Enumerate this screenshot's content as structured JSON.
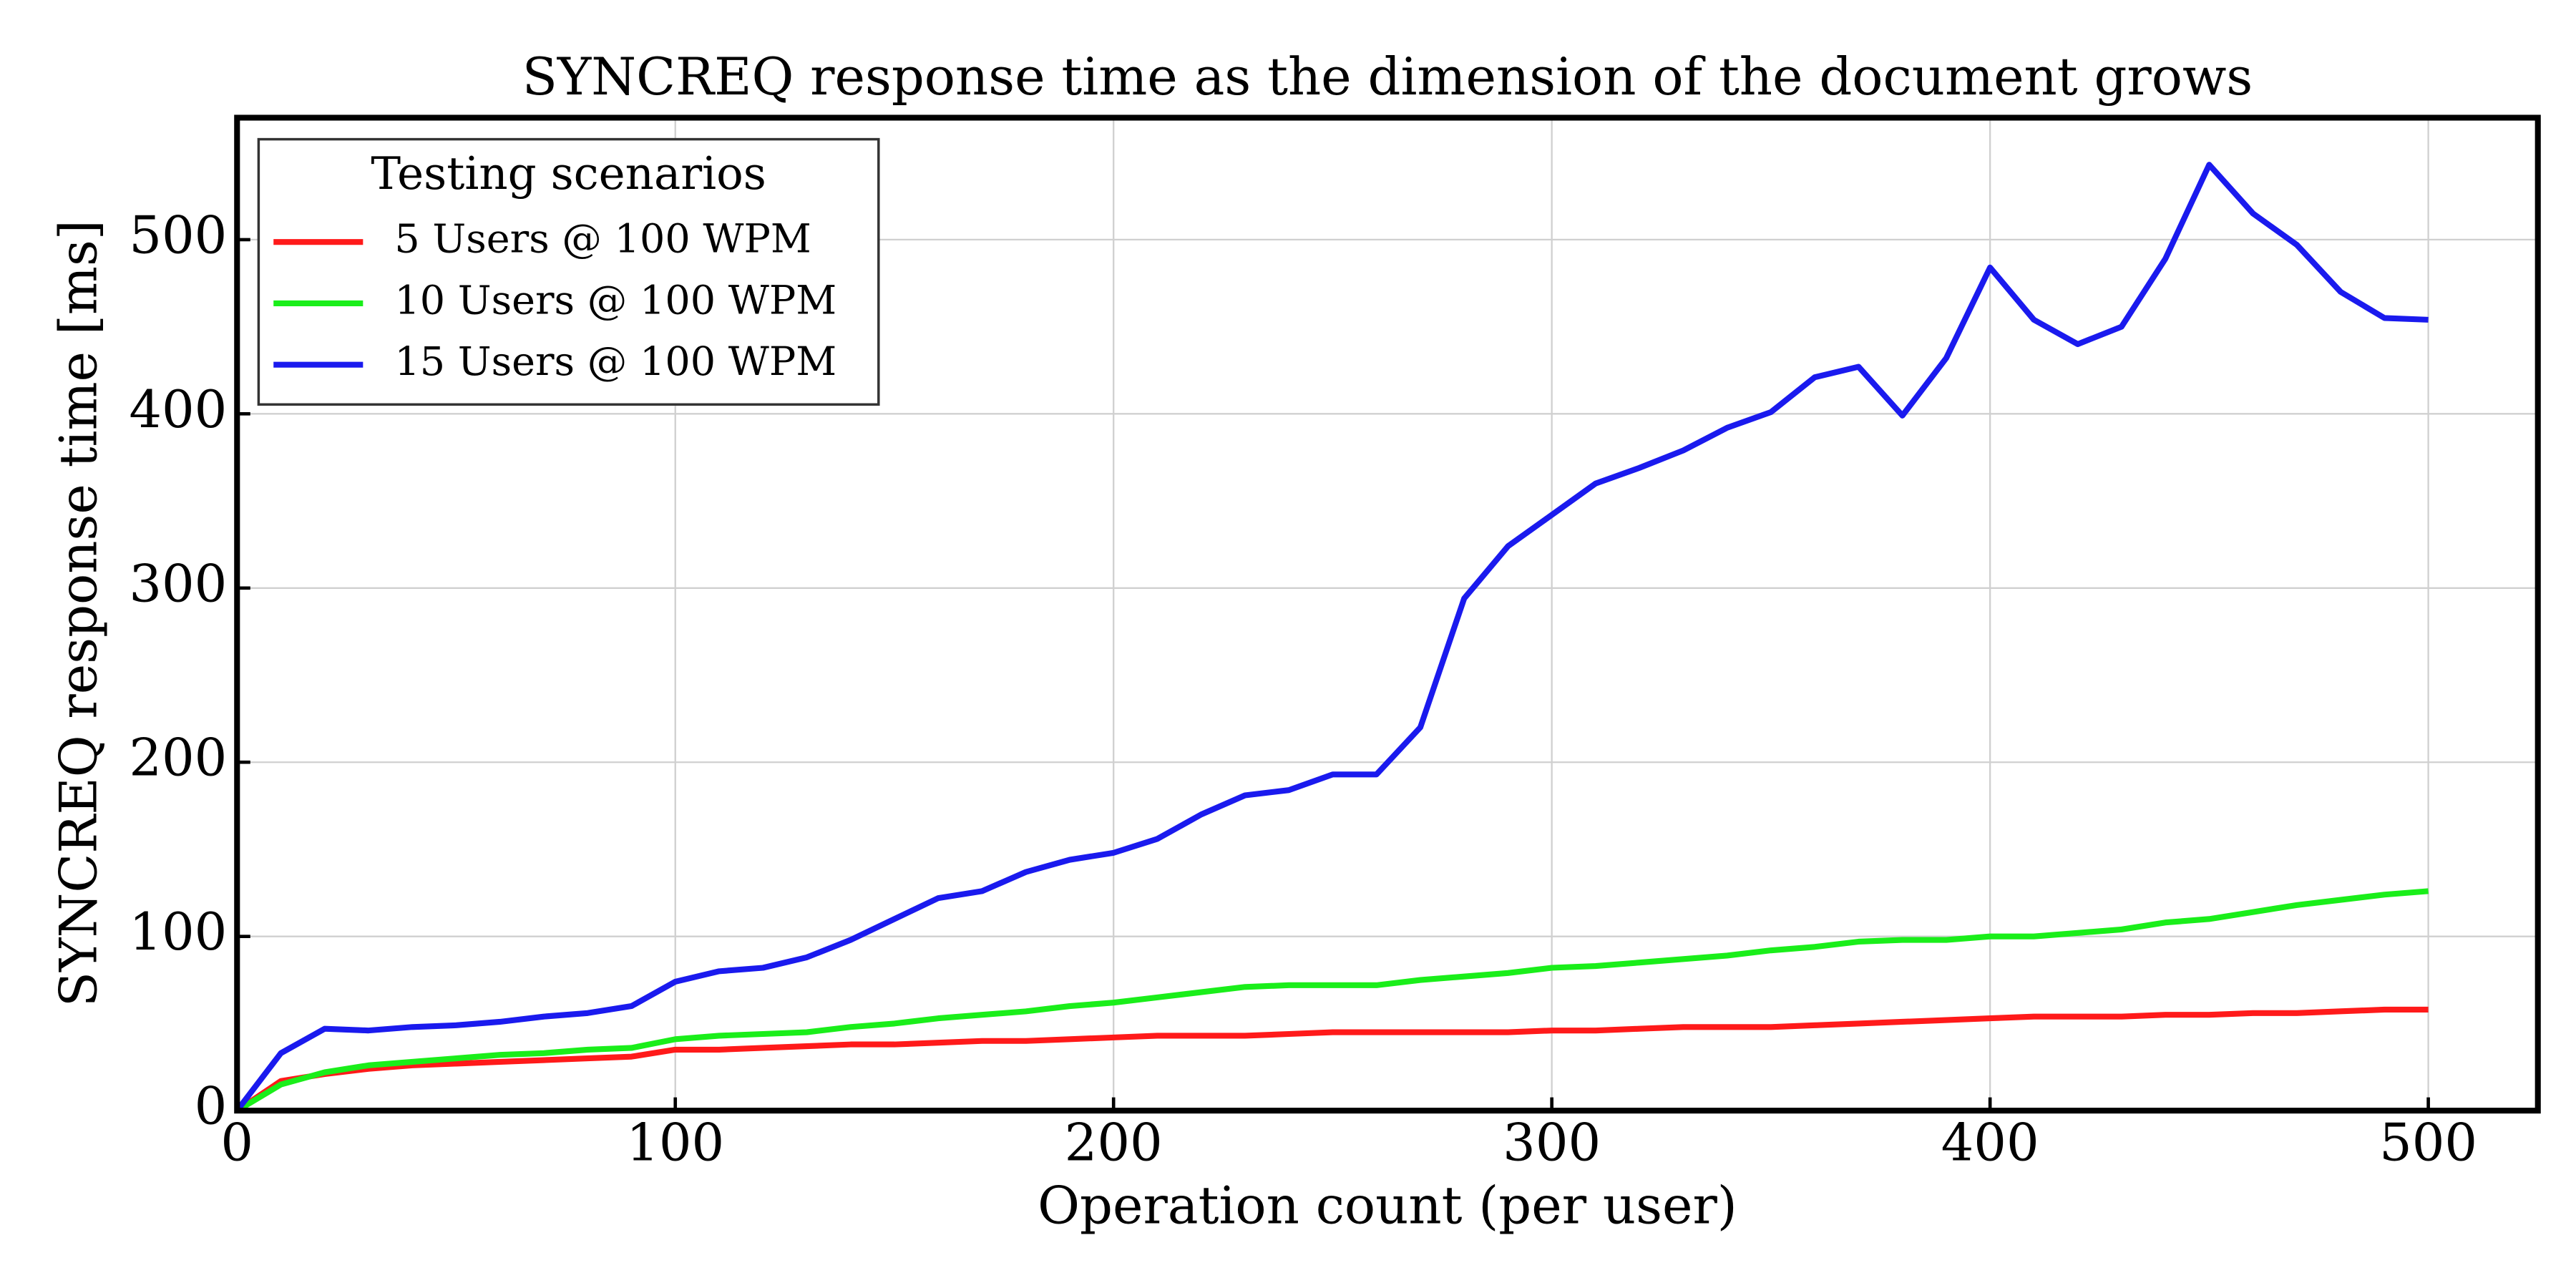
{
  "chart_data": {
    "type": "line",
    "title": "SYNCREQ response time as the dimension of the document grows",
    "xlabel": "Operation count (per user)",
    "ylabel": "SYNCREQ response time [ms]",
    "legend_title": "Testing scenarios",
    "legend": "upper left",
    "grid": true,
    "x": [
      0,
      10,
      20,
      30,
      40,
      50,
      60,
      70,
      80,
      90,
      100,
      110,
      120,
      130,
      140,
      150,
      160,
      170,
      180,
      190,
      200,
      210,
      220,
      230,
      240,
      250,
      260,
      270,
      280,
      290,
      300,
      310,
      320,
      330,
      340,
      350,
      360,
      370,
      380,
      390,
      400,
      410,
      420,
      430,
      440,
      450,
      460,
      470,
      480,
      490,
      500
    ],
    "series": [
      {
        "name": "5 Users @ 100 WPM",
        "color": "#ff1a1a",
        "values": [
          0,
          17,
          21,
          24,
          26,
          27,
          28,
          29,
          30,
          31,
          35,
          35,
          36,
          37,
          38,
          38,
          39,
          40,
          40,
          41,
          42,
          43,
          43,
          43,
          44,
          45,
          45,
          45,
          45,
          45,
          46,
          46,
          47,
          48,
          48,
          48,
          49,
          50,
          51,
          52,
          53,
          54,
          54,
          54,
          55,
          55,
          56,
          56,
          57,
          58,
          58
        ]
      },
      {
        "name": "10 Users @ 100 WPM",
        "color": "#1aee1a",
        "values": [
          0,
          15,
          22,
          26,
          28,
          30,
          32,
          33,
          35,
          36,
          41,
          43,
          44,
          45,
          48,
          50,
          53,
          55,
          57,
          60,
          62,
          65,
          68,
          71,
          72,
          72,
          72,
          75,
          77,
          79,
          82,
          83,
          85,
          87,
          89,
          92,
          94,
          97,
          98,
          98,
          100,
          100,
          102,
          104,
          108,
          110,
          114,
          118,
          121,
          124,
          126
        ]
      },
      {
        "name": "15 Users @ 100 WPM",
        "color": "#1a1aee",
        "values": [
          0,
          33,
          47,
          46,
          48,
          49,
          51,
          54,
          56,
          60,
          74,
          80,
          82,
          88,
          98,
          110,
          122,
          126,
          137,
          144,
          148,
          156,
          170,
          181,
          184,
          193,
          193,
          220,
          294,
          324,
          342,
          360,
          369,
          379,
          392,
          401,
          421,
          427,
          399,
          432,
          484,
          454,
          440,
          450,
          489,
          543,
          515,
          497,
          470,
          455,
          454
        ]
      }
    ],
    "xlim": [
      0,
      525
    ],
    "xticks": [
      0,
      100,
      200,
      300,
      400,
      500
    ],
    "ylim": [
      0,
      570
    ],
    "yticks": [
      0,
      100,
      200,
      300,
      400,
      500
    ]
  }
}
